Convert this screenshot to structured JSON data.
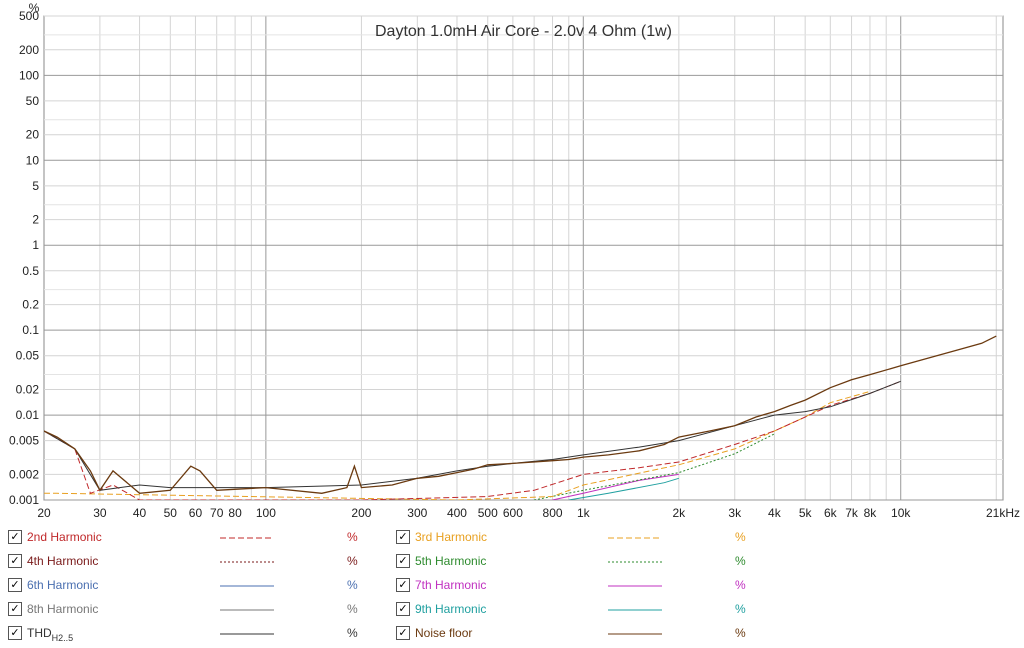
{
  "chart_data": {
    "type": "line",
    "title": "Dayton 1.0mH Air Core - 2.0v 4 Ohm (1w)",
    "y_unit": "%",
    "x_unit_label": "21kHz",
    "x_scale": "log",
    "y_scale": "log",
    "xlim": [
      20,
      21000
    ],
    "ylim": [
      0.001,
      500
    ],
    "grid": true,
    "x_ticks": [
      {
        "v": 20,
        "label": "20"
      },
      {
        "v": 30,
        "label": "30"
      },
      {
        "v": 40,
        "label": "40"
      },
      {
        "v": 50,
        "label": "50"
      },
      {
        "v": 60,
        "label": "60"
      },
      {
        "v": 70,
        "label": "70"
      },
      {
        "v": 80,
        "label": "80"
      },
      {
        "v": 100,
        "label": "100"
      },
      {
        "v": 200,
        "label": "200"
      },
      {
        "v": 300,
        "label": "300"
      },
      {
        "v": 400,
        "label": "400"
      },
      {
        "v": 500,
        "label": "500"
      },
      {
        "v": 600,
        "label": "600"
      },
      {
        "v": 800,
        "label": "800"
      },
      {
        "v": 1000,
        "label": "1k"
      },
      {
        "v": 2000,
        "label": "2k"
      },
      {
        "v": 3000,
        "label": "3k"
      },
      {
        "v": 4000,
        "label": "4k"
      },
      {
        "v": 5000,
        "label": "5k"
      },
      {
        "v": 6000,
        "label": "6k"
      },
      {
        "v": 7000,
        "label": "7k"
      },
      {
        "v": 8000,
        "label": "8k"
      },
      {
        "v": 10000,
        "label": "10k"
      }
    ],
    "y_ticks": [
      {
        "v": 500,
        "label": "500"
      },
      {
        "v": 200,
        "label": "200"
      },
      {
        "v": 100,
        "label": "100"
      },
      {
        "v": 50,
        "label": "50"
      },
      {
        "v": 20,
        "label": "20"
      },
      {
        "v": 10,
        "label": "10"
      },
      {
        "v": 5,
        "label": "5"
      },
      {
        "v": 2,
        "label": "2"
      },
      {
        "v": 1,
        "label": "1"
      },
      {
        "v": 0.5,
        "label": "0.5"
      },
      {
        "v": 0.2,
        "label": "0.2"
      },
      {
        "v": 0.1,
        "label": "0.1"
      },
      {
        "v": 0.05,
        "label": "0.05"
      },
      {
        "v": 0.02,
        "label": "0.02"
      },
      {
        "v": 0.01,
        "label": "0.01"
      },
      {
        "v": 0.005,
        "label": "0.005"
      },
      {
        "v": 0.002,
        "label": "0.002"
      },
      {
        "v": 0.001,
        "label": "0.001"
      }
    ],
    "series": [
      {
        "name": "Noise floor",
        "color": "#6b3a10",
        "width": 1.3,
        "x": [
          20,
          22,
          25,
          28,
          30,
          33,
          40,
          50,
          58,
          62,
          70,
          100,
          150,
          180,
          190,
          200,
          250,
          300,
          350,
          400,
          450,
          500,
          600,
          700,
          800,
          900,
          1000,
          1200,
          1500,
          1800,
          2000,
          2500,
          3000,
          3500,
          4000,
          4500,
          5000,
          6000,
          7000,
          8000,
          10000,
          12000,
          15000,
          18000,
          20000
        ],
        "y": [
          0.0065,
          0.0055,
          0.004,
          0.0022,
          0.0013,
          0.0022,
          0.0012,
          0.0013,
          0.0025,
          0.0022,
          0.0013,
          0.0014,
          0.0012,
          0.0014,
          0.0025,
          0.0014,
          0.0015,
          0.0018,
          0.0019,
          0.0021,
          0.0023,
          0.0026,
          0.0027,
          0.0028,
          0.0029,
          0.003,
          0.0032,
          0.0034,
          0.0038,
          0.0045,
          0.0055,
          0.0065,
          0.0075,
          0.0095,
          0.011,
          0.013,
          0.015,
          0.021,
          0.026,
          0.03,
          0.038,
          0.046,
          0.058,
          0.07,
          0.085
        ]
      },
      {
        "name": "THD H2..5",
        "color": "#333333",
        "width": 1,
        "x": [
          20,
          25,
          30,
          40,
          50,
          100,
          200,
          300,
          400,
          500,
          600,
          800,
          1000,
          1500,
          2000,
          3000,
          4000,
          5000,
          6000,
          8000,
          10000
        ],
        "y": [
          0.0065,
          0.004,
          0.0013,
          0.0015,
          0.0014,
          0.0014,
          0.0015,
          0.0018,
          0.0022,
          0.0025,
          0.0027,
          0.003,
          0.0034,
          0.0042,
          0.005,
          0.0075,
          0.01,
          0.011,
          0.0125,
          0.018,
          0.025
        ]
      },
      {
        "name": "2nd Harmonic",
        "color": "#c0282a",
        "width": 1,
        "dash": "6,3",
        "x": [
          20,
          25,
          28,
          33,
          40,
          200,
          500,
          700,
          1000,
          1500,
          2000,
          3000,
          4000,
          5000,
          6000,
          8000,
          10000
        ],
        "y": [
          0.0065,
          0.004,
          0.0012,
          0.0015,
          0.001,
          0.001,
          0.0011,
          0.0013,
          0.002,
          0.0024,
          0.0028,
          0.0045,
          0.0065,
          0.0095,
          0.013,
          0.018,
          0.025
        ]
      },
      {
        "name": "3rd Harmonic",
        "color": "#e8a020",
        "width": 1,
        "dash": "6,3",
        "x": [
          20,
          22,
          400,
          800,
          1000,
          2000,
          3000,
          4000,
          5000,
          6000,
          8000
        ],
        "y": [
          0.0012,
          0.0012,
          0.001,
          0.0011,
          0.0015,
          0.0026,
          0.004,
          0.0065,
          0.0095,
          0.014,
          0.019
        ]
      },
      {
        "name": "5th Harmonic",
        "color": "#2e8b2e",
        "width": 1,
        "dash": "2,2",
        "x": [
          700,
          1000,
          2000,
          3000,
          4000
        ],
        "y": [
          0.001,
          0.0013,
          0.0021,
          0.0035,
          0.006
        ]
      },
      {
        "name": "7th Harmonic",
        "color": "#c030c0",
        "width": 1,
        "x": [
          800,
          1000,
          1500,
          2000
        ],
        "y": [
          0.001,
          0.0012,
          0.0017,
          0.002
        ]
      },
      {
        "name": "9th Harmonic",
        "color": "#20a0a0",
        "width": 1,
        "x": [
          900,
          1200,
          1800,
          2000
        ],
        "y": [
          0.001,
          0.0012,
          0.0016,
          0.0018
        ]
      }
    ]
  },
  "legend": {
    "left": [
      {
        "label": "2nd Harmonic",
        "color": "#c0282a",
        "unit": "%",
        "unit_color": "#c0282a",
        "dash": "6,3"
      },
      {
        "label": "4th Harmonic",
        "color": "#7a1a1a",
        "unit": "%",
        "unit_color": "#7a1a1a",
        "dash": "2,2"
      },
      {
        "label": "6th Harmonic",
        "color": "#4a6fb0",
        "unit": "%",
        "unit_color": "#4a6fb0",
        "dash": ""
      },
      {
        "label": "8th Harmonic",
        "color": "#777777",
        "unit": "%",
        "unit_color": "#777777",
        "dash": ""
      },
      {
        "label": "THD",
        "sub": "H2..5",
        "color": "#333333",
        "unit": "%",
        "unit_color": "#333333",
        "dash": ""
      }
    ],
    "right": [
      {
        "label": "3rd Harmonic",
        "color": "#e8a020",
        "unit": "%",
        "unit_color": "#e8a020",
        "dash": "6,3"
      },
      {
        "label": "5th Harmonic",
        "color": "#2e8b2e",
        "unit": "%",
        "unit_color": "#2e8b2e",
        "dash": "2,2"
      },
      {
        "label": "7th Harmonic",
        "color": "#c030c0",
        "unit": "%",
        "unit_color": "#c030c0",
        "dash": ""
      },
      {
        "label": "9th Harmonic",
        "color": "#20a0a0",
        "unit": "%",
        "unit_color": "#20a0a0",
        "dash": ""
      },
      {
        "label": "Noise floor",
        "color": "#6b3a10",
        "unit": "%",
        "unit_color": "#6b3a10",
        "dash": ""
      }
    ],
    "check_glyph": "✓"
  }
}
